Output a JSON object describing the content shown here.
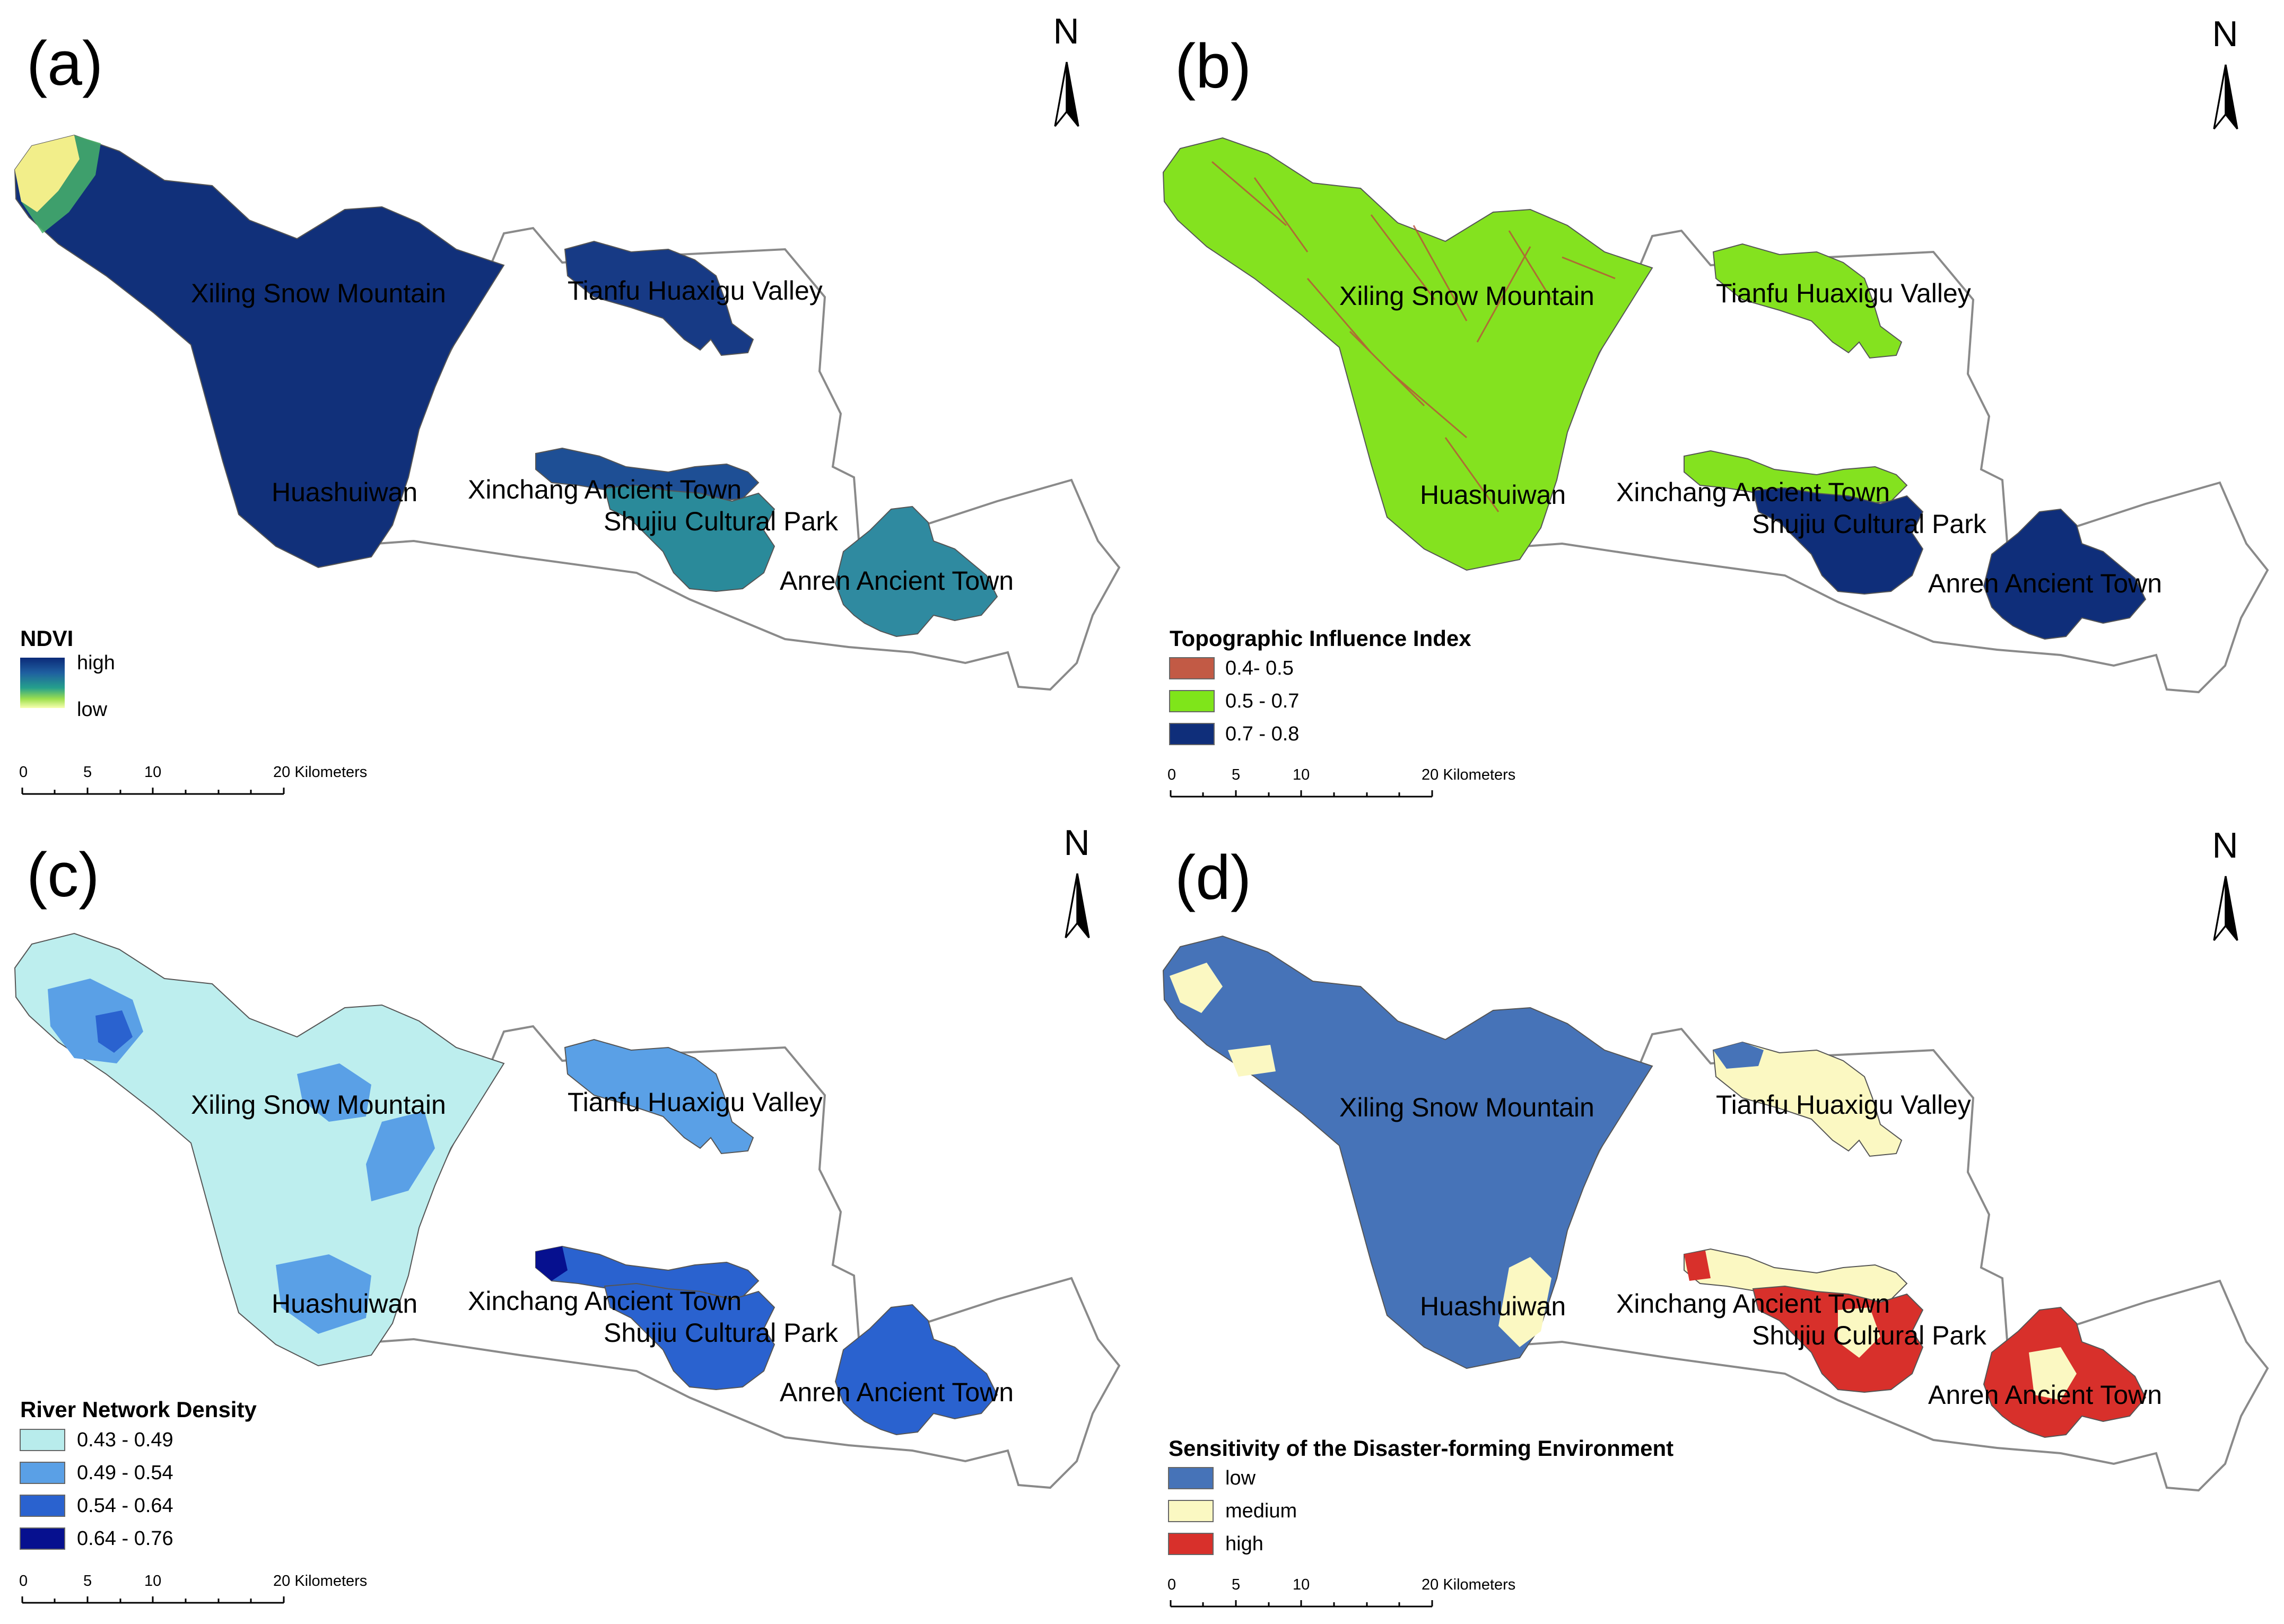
{
  "panels": [
    {
      "letter": "(a)",
      "legend_title": "NDVI",
      "legend_type": "gradient",
      "gradient_labels": [
        "high",
        "low"
      ],
      "gradient_colors": [
        "#0b2a78",
        "#1f5fa0",
        "#25a08c",
        "#9ee04e",
        "#f7ffb0"
      ],
      "region_colors": {
        "mountain": "#11307a",
        "valley": "#173a85",
        "xinchang": "#1e4f95",
        "shujiu": "#2a8a9a",
        "anren": "#2f8aa0"
      }
    },
    {
      "letter": "(b)",
      "legend_title": "Topographic Influence Index",
      "legend_type": "classes",
      "classes": [
        {
          "label": "0.4- 0.5",
          "color": "#c25a45"
        },
        {
          "label": "0.5 - 0.7",
          "color": "#7fe51a"
        },
        {
          "label": "0.7 - 0.8",
          "color": "#0f2e7a"
        }
      ],
      "region_colors": {
        "mountain": "#84e21f",
        "valley": "#84e21f",
        "xinchang": "#84e21f",
        "shujiu": "#0f2e7a",
        "anren": "#0f2e7a"
      }
    },
    {
      "letter": "(c)",
      "legend_title": "River Network Density",
      "legend_type": "classes",
      "classes": [
        {
          "label": "0.43 - 0.49",
          "color": "#b8ecec"
        },
        {
          "label": "0.49 - 0.54",
          "color": "#5aa0e6"
        },
        {
          "label": "0.54 - 0.64",
          "color": "#2a62cf"
        },
        {
          "label": "0.64 - 0.76",
          "color": "#06108f"
        }
      ],
      "region_colors": {
        "mountain": "#bdeeee",
        "valley": "#5aa0e6",
        "xinchang": "#2a62cf",
        "shujiu": "#2a62cf",
        "anren": "#2a62cf"
      }
    },
    {
      "letter": "(d)",
      "legend_title": "Sensitivity of the Disaster-forming Environment",
      "legend_type": "classes",
      "classes": [
        {
          "label": "low",
          "color": "#4673b8"
        },
        {
          "label": "medium",
          "color": "#fbf8c2"
        },
        {
          "label": "high",
          "color": "#d8302b"
        }
      ],
      "region_colors": {
        "mountain": "#4673b8",
        "valley": "#fbf8c2",
        "xinchang": "#fbf8c2",
        "shujiu": "#d8302b",
        "anren": "#d8302b"
      }
    }
  ],
  "place_names": {
    "xiling": "Xiling Snow Mountain",
    "tianfu": "Tianfu Huaxigu Valley",
    "huashuiwan": "Huashuiwan",
    "xinchang": "Xinchang Ancient Town",
    "shujiu": "Shujiu Cultural Park",
    "anren": "Anren Ancient Town"
  },
  "north_label": "N",
  "scale_bar": {
    "ticks": [
      "0",
      "5",
      "10"
    ],
    "end_label": "20 Kilometers"
  },
  "colors": {
    "county_outline": "#8a8a8a",
    "medium_patch": "#fbf8c2",
    "high_patch": "#d8302b",
    "low_patch": "#4673b8"
  }
}
